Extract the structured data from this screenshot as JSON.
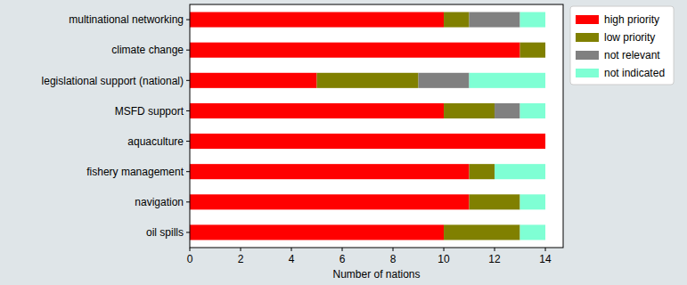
{
  "chart_data": {
    "type": "bar",
    "orientation": "horizontal",
    "stacked": true,
    "xlabel": "Number of nations",
    "categories": [
      "multinational networking",
      "climate change",
      "legislational support (national)",
      "MSFD support",
      "aquaculture",
      "fishery management",
      "navigation",
      "oil spills"
    ],
    "series": [
      {
        "name": "high priority",
        "color": "#ff0000",
        "values": [
          10,
          13,
          5,
          10,
          14,
          11,
          11,
          10
        ]
      },
      {
        "name": "low priority",
        "color": "#808000",
        "values": [
          1,
          1,
          4,
          2,
          0,
          1,
          2,
          3
        ]
      },
      {
        "name": "not relevant",
        "color": "#808080",
        "values": [
          2,
          0,
          2,
          1,
          0,
          0,
          0,
          0
        ]
      },
      {
        "name": "not indicated",
        "color": "#7fffd4",
        "values": [
          1,
          0,
          3,
          1,
          0,
          2,
          1,
          1
        ]
      }
    ],
    "xlim": [
      0,
      14.7
    ],
    "xticks": [
      0,
      2,
      4,
      6,
      8,
      10,
      12,
      14
    ],
    "grid": false,
    "legend": "right"
  }
}
